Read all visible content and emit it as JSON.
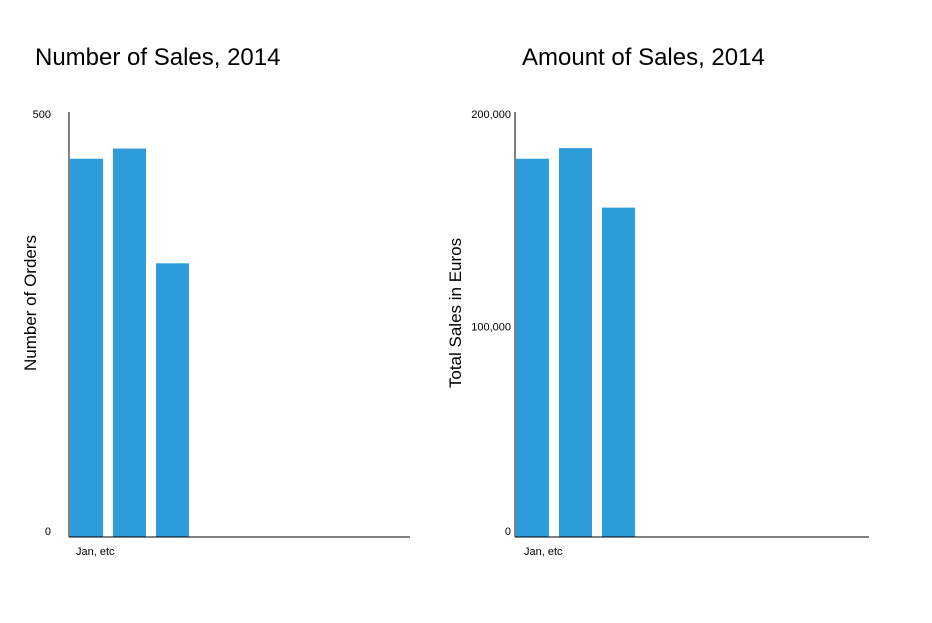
{
  "chart_data": [
    {
      "type": "bar",
      "title": "Number of Sales, 2014",
      "ylabel": "Number of Orders",
      "xlabel": "",
      "categories": [
        "Jan, etc",
        "",
        ""
      ],
      "values": [
        445,
        457,
        322
      ],
      "ylim": [
        0,
        500
      ],
      "y_ticks": [
        "0",
        "500"
      ],
      "grid": false,
      "color": "#2d9cdb"
    },
    {
      "type": "bar",
      "title": "Amount of Sales, 2014",
      "ylabel": "Total Sales in Euros",
      "xlabel": "",
      "categories": [
        "Jan, etc",
        "",
        ""
      ],
      "values": [
        178000,
        183000,
        155000
      ],
      "ylim": [
        0,
        200000
      ],
      "y_ticks": [
        "0",
        "100,000",
        "200,000"
      ],
      "grid": false,
      "color": "#2d9cdb"
    }
  ]
}
